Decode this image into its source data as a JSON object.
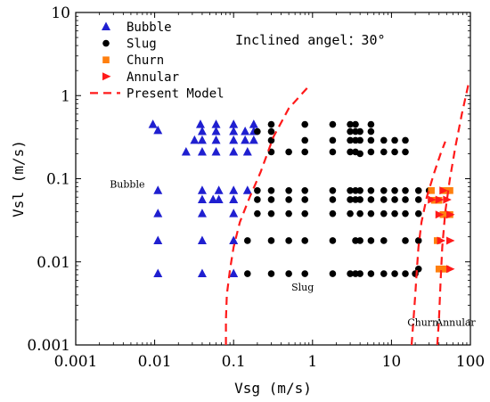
{
  "chart_data": {
    "type": "scatter",
    "xscale": "log",
    "yscale": "log",
    "xlim": [
      0.001,
      100
    ],
    "ylim": [
      0.001,
      10
    ],
    "xlabel": "Vsg (m/s)",
    "ylabel": "Vsl (m/s)",
    "xticks": [
      0.001,
      0.01,
      0.1,
      1,
      10,
      100
    ],
    "xtick_labels": [
      "0.001",
      "0.01",
      "0.1",
      "1",
      "10",
      "100"
    ],
    "yticks": [
      0.001,
      0.01,
      0.1,
      1,
      10
    ],
    "ytick_labels": [
      "0.001",
      "0.01",
      "0.1",
      "1",
      "10"
    ],
    "annotation": "Inclined angel：30°",
    "legend_position": "top-left",
    "region_labels": [
      {
        "text": "Bubble",
        "x": 0.0045,
        "y": 0.078
      },
      {
        "text": "Slug",
        "x": 0.75,
        "y": 0.0045
      },
      {
        "text": "Churn",
        "x": 25,
        "y": 0.0017
      },
      {
        "text": "Annular",
        "x": 65,
        "y": 0.0017
      }
    ],
    "series": [
      {
        "name": "Bubble",
        "marker": "triangle-up",
        "color": "#1f1fd0",
        "points": [
          [
            0.0095,
            0.45
          ],
          [
            0.011,
            0.38
          ],
          [
            0.025,
            0.21
          ],
          [
            0.032,
            0.29
          ],
          [
            0.038,
            0.45
          ],
          [
            0.04,
            0.37
          ],
          [
            0.04,
            0.29
          ],
          [
            0.04,
            0.21
          ],
          [
            0.06,
            0.45
          ],
          [
            0.06,
            0.37
          ],
          [
            0.06,
            0.29
          ],
          [
            0.06,
            0.21
          ],
          [
            0.1,
            0.45
          ],
          [
            0.1,
            0.37
          ],
          [
            0.1,
            0.29
          ],
          [
            0.1,
            0.21
          ],
          [
            0.14,
            0.37
          ],
          [
            0.14,
            0.29
          ],
          [
            0.15,
            0.21
          ],
          [
            0.18,
            0.45
          ],
          [
            0.18,
            0.37
          ],
          [
            0.18,
            0.29
          ],
          [
            0.011,
            0.072
          ],
          [
            0.011,
            0.038
          ],
          [
            0.011,
            0.018
          ],
          [
            0.011,
            0.0072
          ],
          [
            0.04,
            0.072
          ],
          [
            0.04,
            0.056
          ],
          [
            0.04,
            0.038
          ],
          [
            0.04,
            0.018
          ],
          [
            0.04,
            0.0072
          ],
          [
            0.055,
            0.056
          ],
          [
            0.065,
            0.072
          ],
          [
            0.065,
            0.056
          ],
          [
            0.1,
            0.072
          ],
          [
            0.1,
            0.056
          ],
          [
            0.1,
            0.038
          ],
          [
            0.1,
            0.018
          ],
          [
            0.1,
            0.0072
          ],
          [
            0.15,
            0.072
          ]
        ]
      },
      {
        "name": "Slug",
        "marker": "circle",
        "color": "#000000",
        "points": [
          [
            0.2,
            0.37
          ],
          [
            0.3,
            0.45
          ],
          [
            0.3,
            0.37
          ],
          [
            0.3,
            0.29
          ],
          [
            0.3,
            0.21
          ],
          [
            0.5,
            0.21
          ],
          [
            0.8,
            0.45
          ],
          [
            0.8,
            0.29
          ],
          [
            0.8,
            0.21
          ],
          [
            1.8,
            0.45
          ],
          [
            1.8,
            0.29
          ],
          [
            1.8,
            0.21
          ],
          [
            3,
            0.45
          ],
          [
            3,
            0.37
          ],
          [
            3,
            0.29
          ],
          [
            3,
            0.21
          ],
          [
            3.5,
            0.45
          ],
          [
            3.5,
            0.37
          ],
          [
            3.5,
            0.29
          ],
          [
            3.5,
            0.21
          ],
          [
            4,
            0.37
          ],
          [
            4,
            0.29
          ],
          [
            4,
            0.2
          ],
          [
            5.5,
            0.45
          ],
          [
            5.5,
            0.37
          ],
          [
            5.5,
            0.29
          ],
          [
            5.5,
            0.21
          ],
          [
            8,
            0.29
          ],
          [
            8,
            0.21
          ],
          [
            11,
            0.29
          ],
          [
            11,
            0.21
          ],
          [
            15,
            0.29
          ],
          [
            15,
            0.21
          ],
          [
            0.2,
            0.072
          ],
          [
            0.2,
            0.056
          ],
          [
            0.2,
            0.038
          ],
          [
            0.3,
            0.072
          ],
          [
            0.3,
            0.056
          ],
          [
            0.3,
            0.038
          ],
          [
            0.5,
            0.072
          ],
          [
            0.5,
            0.056
          ],
          [
            0.5,
            0.038
          ],
          [
            0.8,
            0.072
          ],
          [
            0.8,
            0.056
          ],
          [
            0.8,
            0.038
          ],
          [
            1.8,
            0.072
          ],
          [
            1.8,
            0.056
          ],
          [
            1.8,
            0.038
          ],
          [
            3,
            0.072
          ],
          [
            3,
            0.056
          ],
          [
            3,
            0.038
          ],
          [
            3.5,
            0.072
          ],
          [
            3.5,
            0.056
          ],
          [
            4,
            0.072
          ],
          [
            4,
            0.056
          ],
          [
            4,
            0.038
          ],
          [
            5.5,
            0.072
          ],
          [
            5.5,
            0.056
          ],
          [
            5.5,
            0.038
          ],
          [
            8,
            0.072
          ],
          [
            8,
            0.056
          ],
          [
            8,
            0.038
          ],
          [
            11,
            0.072
          ],
          [
            11,
            0.056
          ],
          [
            11,
            0.038
          ],
          [
            15,
            0.072
          ],
          [
            15,
            0.056
          ],
          [
            15,
            0.038
          ],
          [
            22,
            0.072
          ],
          [
            22,
            0.056
          ],
          [
            22,
            0.038
          ],
          [
            30,
            0.072
          ],
          [
            0.15,
            0.018
          ],
          [
            0.3,
            0.018
          ],
          [
            0.5,
            0.018
          ],
          [
            0.8,
            0.018
          ],
          [
            1.8,
            0.018
          ],
          [
            3.5,
            0.018
          ],
          [
            4,
            0.018
          ],
          [
            5.5,
            0.018
          ],
          [
            8,
            0.018
          ],
          [
            15,
            0.018
          ],
          [
            22,
            0.018
          ],
          [
            0.15,
            0.0072
          ],
          [
            0.3,
            0.0072
          ],
          [
            0.5,
            0.0072
          ],
          [
            0.8,
            0.0072
          ],
          [
            1.8,
            0.0072
          ],
          [
            3,
            0.0072
          ],
          [
            3.5,
            0.0072
          ],
          [
            4,
            0.0072
          ],
          [
            5.5,
            0.0072
          ],
          [
            8,
            0.0072
          ],
          [
            11,
            0.0072
          ],
          [
            15,
            0.0072
          ],
          [
            20,
            0.0072
          ],
          [
            22,
            0.0082
          ]
        ]
      },
      {
        "name": "Churn",
        "marker": "square",
        "color": "#ff7f0e",
        "points": [
          [
            32,
            0.072
          ],
          [
            35,
            0.055
          ],
          [
            40,
            0.055
          ],
          [
            45,
            0.072
          ],
          [
            50,
            0.072
          ],
          [
            55,
            0.072
          ],
          [
            45,
            0.037
          ],
          [
            50,
            0.037
          ],
          [
            55,
            0.037
          ],
          [
            38,
            0.018
          ],
          [
            40,
            0.0082
          ],
          [
            45,
            0.0082
          ],
          [
            48,
            0.0082
          ]
        ]
      },
      {
        "name": "Annular",
        "marker": "triangle-right",
        "color": "#ff1a1a",
        "points": [
          [
            32,
            0.056
          ],
          [
            40,
            0.056
          ],
          [
            50,
            0.056
          ],
          [
            45,
            0.072
          ],
          [
            40,
            0.037
          ],
          [
            55,
            0.037
          ],
          [
            42,
            0.018
          ],
          [
            55,
            0.018
          ],
          [
            55,
            0.0082
          ]
        ]
      },
      {
        "name": "Present Model",
        "marker": "line-dashed",
        "color": "#ff1a1a",
        "lines": [
          [
            [
              0.08,
              0.001
            ],
            [
              0.08,
              0.002
            ],
            [
              0.082,
              0.004
            ],
            [
              0.09,
              0.008
            ],
            [
              0.1,
              0.015
            ],
            [
              0.12,
              0.03
            ],
            [
              0.16,
              0.06
            ],
            [
              0.22,
              0.12
            ],
            [
              0.32,
              0.32
            ],
            [
              0.5,
              0.7
            ],
            [
              0.9,
              1.3
            ]
          ],
          [
            [
              18,
              0.001
            ],
            [
              19,
              0.002
            ],
            [
              20,
              0.004
            ],
            [
              21,
              0.008
            ],
            [
              22,
              0.015
            ],
            [
              24,
              0.03
            ],
            [
              28,
              0.06
            ],
            [
              35,
              0.12
            ],
            [
              42,
              0.2
            ],
            [
              48,
              0.28
            ]
          ],
          [
            [
              38,
              0.001
            ],
            [
              40,
              0.002
            ],
            [
              42,
              0.006
            ],
            [
              44,
              0.015
            ],
            [
              48,
              0.04
            ],
            [
              55,
              0.1
            ],
            [
              65,
              0.25
            ],
            [
              78,
              0.6
            ],
            [
              95,
              1.4
            ]
          ]
        ]
      }
    ]
  }
}
